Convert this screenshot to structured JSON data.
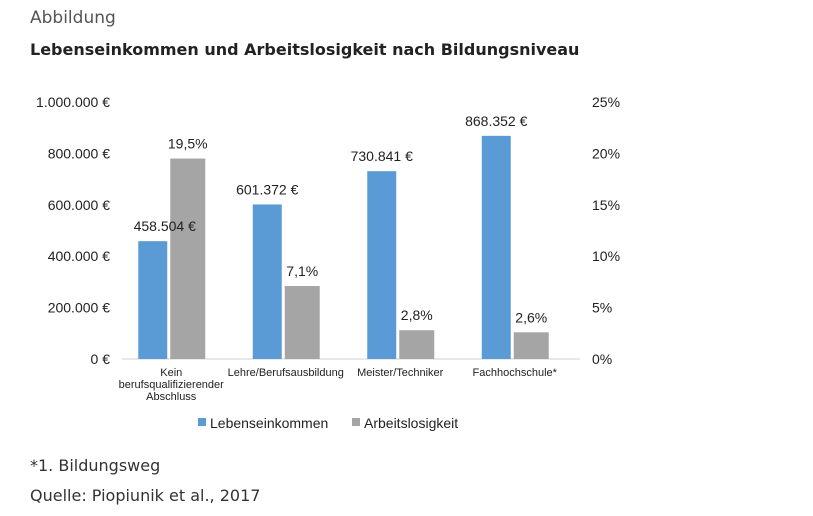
{
  "header": {
    "label": "Abbildung",
    "title": "Lebenseinkommen und Arbeitslosigkeit nach Bildungsniveau"
  },
  "footer": {
    "note": "*1. Bildungsweg",
    "source": "Quelle: Piopiunik et al., 2017"
  },
  "chart_data": {
    "type": "bar",
    "categories": [
      [
        "Kein",
        "berufsqualifizierender",
        "Abschluss"
      ],
      [
        "Lehre/Berufsausbildung"
      ],
      [
        "Meister/Techniker"
      ],
      [
        "Fachhochschule*"
      ]
    ],
    "series": [
      {
        "name": "Lebenseinkommen",
        "axis": "left",
        "color": "#5b9bd5",
        "values": [
          458504,
          601372,
          730841,
          868352
        ],
        "labels": [
          "458.504 €",
          "601.372 €",
          "730.841 €",
          "868.352 €"
        ]
      },
      {
        "name": "Arbeitslosigkeit",
        "axis": "right",
        "color": "#a5a5a5",
        "values": [
          19.5,
          7.1,
          2.8,
          2.6
        ],
        "labels": [
          "19,5%",
          "7,1%",
          "2,8%",
          "2,6%"
        ]
      }
    ],
    "y_left": {
      "ylim": [
        0,
        1000000
      ],
      "ticks": [
        "0 €",
        "200.000 €",
        "400.000 €",
        "600.000 €",
        "800.000 €",
        "1.000.000 €"
      ]
    },
    "y_right": {
      "ylim": [
        0,
        25
      ],
      "ticks": [
        "0%",
        "5%",
        "10%",
        "15%",
        "20%",
        "25%"
      ]
    },
    "grid": false,
    "legend_position": "bottom"
  }
}
